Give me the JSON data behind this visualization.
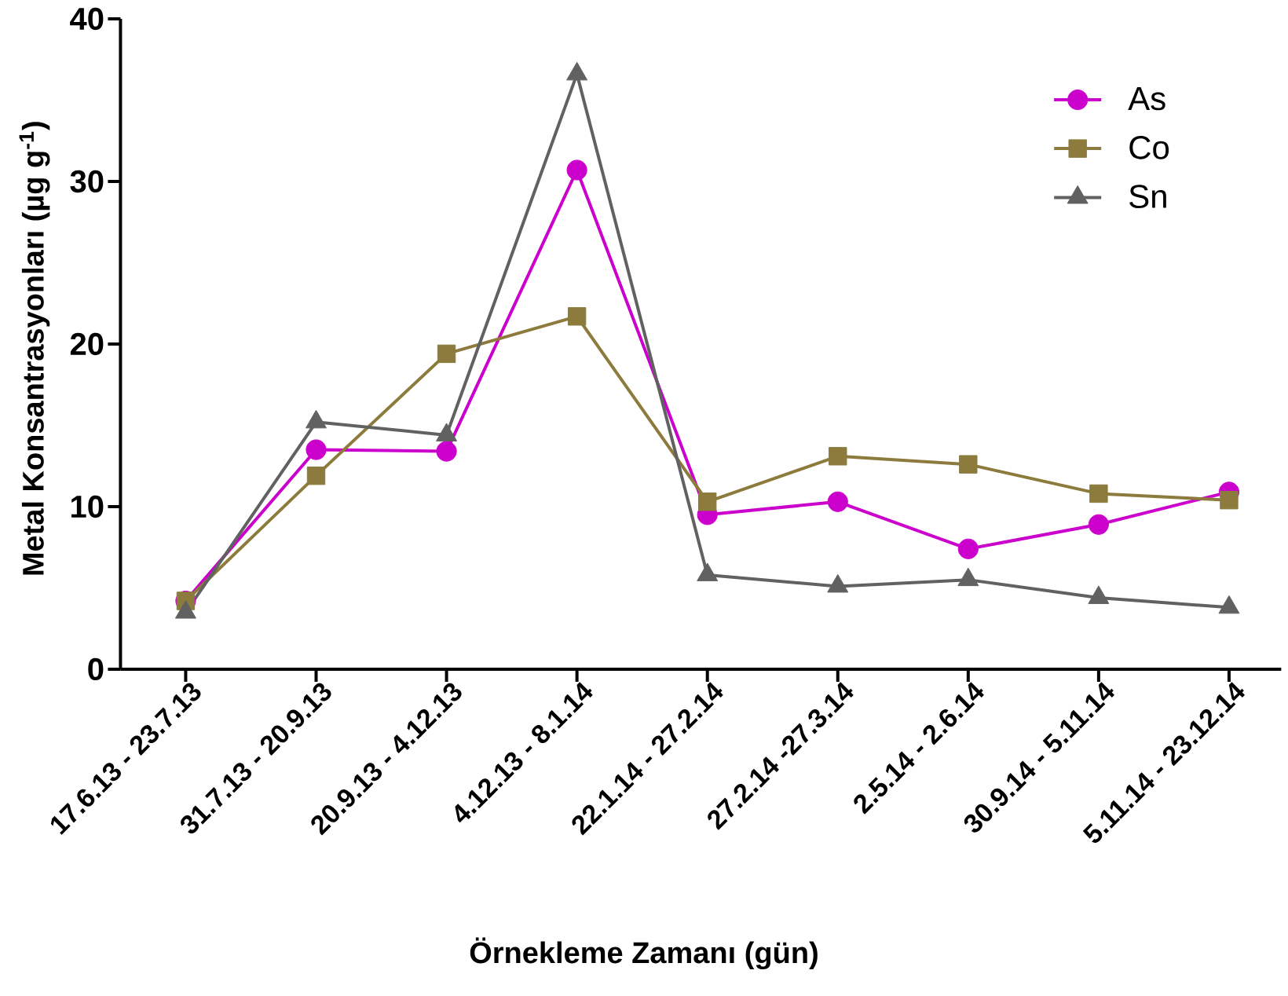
{
  "chart_data": {
    "type": "line",
    "xlabel": "Örnekleme Zamanı (gün)",
    "ylabel": "Metal Konsantrasyonları (µg g$^{-1}$)",
    "categories": [
      "17.6.13 - 23.7.13",
      "31.7.13 - 20.9.13",
      "20.9.13 - 4.12.13",
      "4.12.13 - 8.1.14",
      "22.1.14 - 27.2.14",
      "27.2.14 -27.3.14",
      "2.5.14 - 2.6.14",
      "30.9.14 - 5.11.14",
      "5.11.14 - 23.12.14"
    ],
    "series": [
      {
        "name": "As",
        "color": "#cc00cc",
        "marker": "circle",
        "values": [
          4.2,
          13.5,
          13.4,
          30.7,
          9.5,
          10.3,
          7.4,
          8.9,
          10.9
        ]
      },
      {
        "name": "Co",
        "color": "#8c7b3c",
        "marker": "square",
        "values": [
          4.2,
          11.9,
          19.4,
          21.7,
          10.3,
          13.1,
          12.6,
          10.8,
          10.4
        ]
      },
      {
        "name": "Sn",
        "color": "#616161",
        "marker": "triangle",
        "values": [
          3.5,
          15.2,
          14.4,
          36.6,
          5.8,
          5.1,
          5.5,
          4.4,
          3.8
        ]
      }
    ],
    "ylim": [
      0,
      40
    ],
    "yticks": [
      0,
      10,
      20,
      30,
      40
    ],
    "legend": "top right"
  }
}
